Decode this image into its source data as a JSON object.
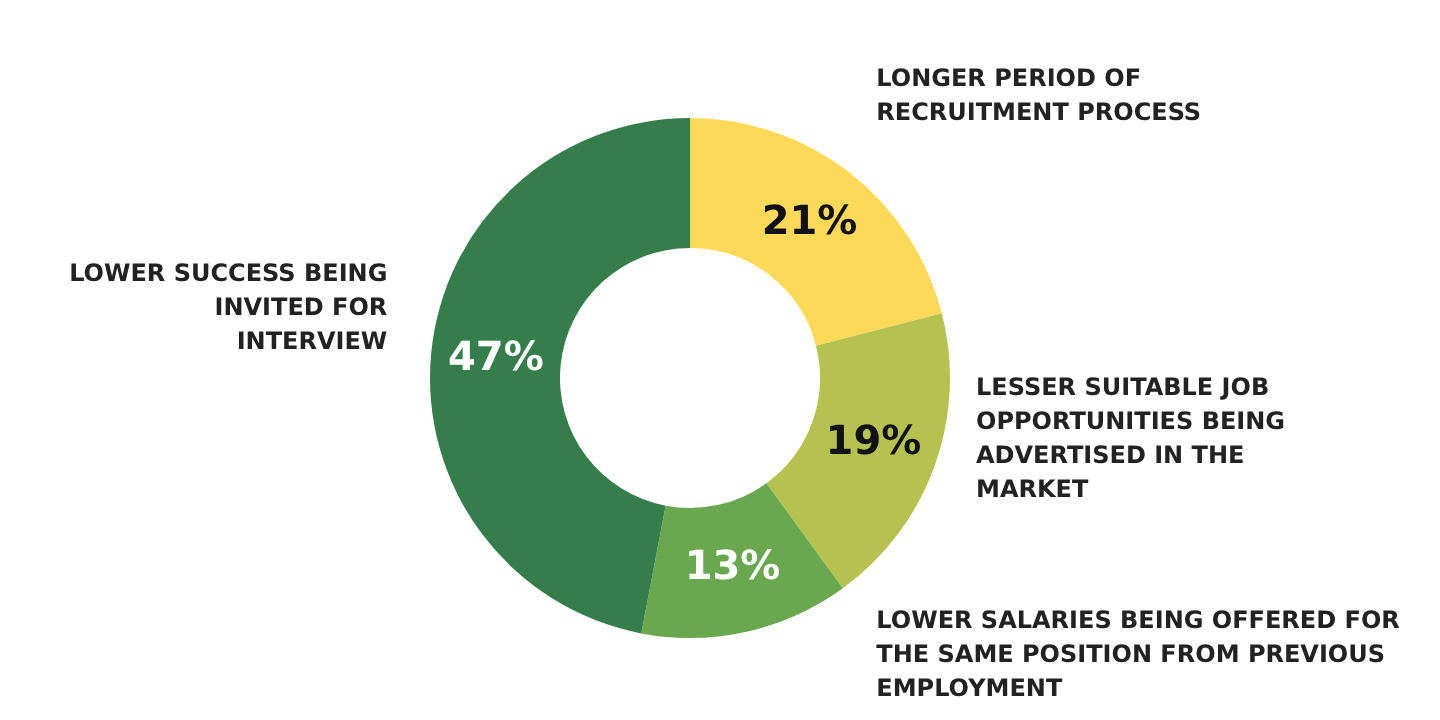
{
  "chart_data": {
    "type": "donut",
    "categories": [
      "LONGER PERIOD OF RECRUITMENT PROCESS",
      "LESSER SUITABLE JOB OPPORTUNITIES BEING ADVERTISED IN THE MARKET",
      "LOWER SALARIES BEING OFFERED FOR THE SAME POSITION FROM PREVIOUS EMPLOYMENT",
      "LOWER SUCCESS BEING INVITED FOR INTERVIEW"
    ],
    "values": [
      21,
      19,
      13,
      47
    ],
    "value_labels": [
      "21%",
      "19%",
      "13%",
      "47%"
    ],
    "colors": [
      "#fdd95a",
      "#b5c24f",
      "#6aa84f",
      "#357e4b"
    ],
    "legend": false
  }
}
